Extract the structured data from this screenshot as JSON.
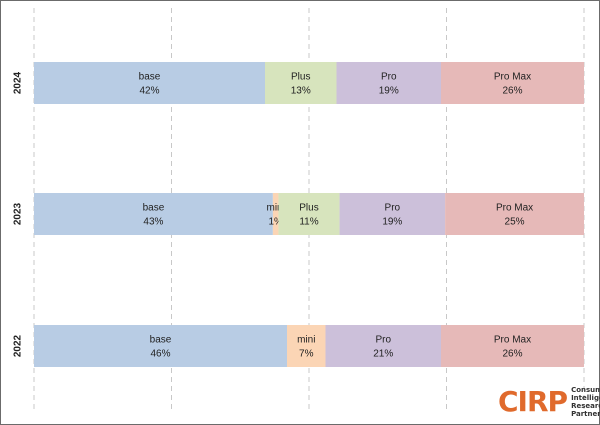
{
  "chart_data": {
    "type": "bar",
    "orientation": "horizontal",
    "stacked": true,
    "normalized_to_100": true,
    "grid": "vertical dashed",
    "rows": [
      {
        "year": "2024",
        "segments": [
          {
            "name": "base",
            "value": 42,
            "label": "42%"
          },
          {
            "name": "Plus",
            "value": 13,
            "label": "13%"
          },
          {
            "name": "Pro",
            "value": 19,
            "label": "19%"
          },
          {
            "name": "Pro Max",
            "value": 26,
            "label": "26%"
          }
        ]
      },
      {
        "year": "2023",
        "segments": [
          {
            "name": "base",
            "value": 43,
            "label": "43%"
          },
          {
            "name": "mini",
            "value": 1,
            "label": "1%"
          },
          {
            "name": "Plus",
            "value": 11,
            "label": "11%"
          },
          {
            "name": "Pro",
            "value": 19,
            "label": "19%"
          },
          {
            "name": "Pro Max",
            "value": 25,
            "label": "25%"
          }
        ]
      },
      {
        "year": "2022",
        "segments": [
          {
            "name": "base",
            "value": 46,
            "label": "46%"
          },
          {
            "name": "mini",
            "value": 7,
            "label": "7%"
          },
          {
            "name": "Pro",
            "value": 21,
            "label": "21%"
          },
          {
            "name": "Pro Max",
            "value": 26,
            "label": "26%"
          }
        ]
      }
    ],
    "colors": {
      "base": "#b8cce4",
      "mini": "#fbd5b5",
      "Plus": "#d7e4bd",
      "Pro": "#ccc0da",
      "Pro Max": "#e6b9b8"
    }
  },
  "logo": {
    "mark": "CIRP",
    "lines": [
      "Consumer",
      "Intelligence",
      "Research",
      "Partners, LLC"
    ]
  }
}
